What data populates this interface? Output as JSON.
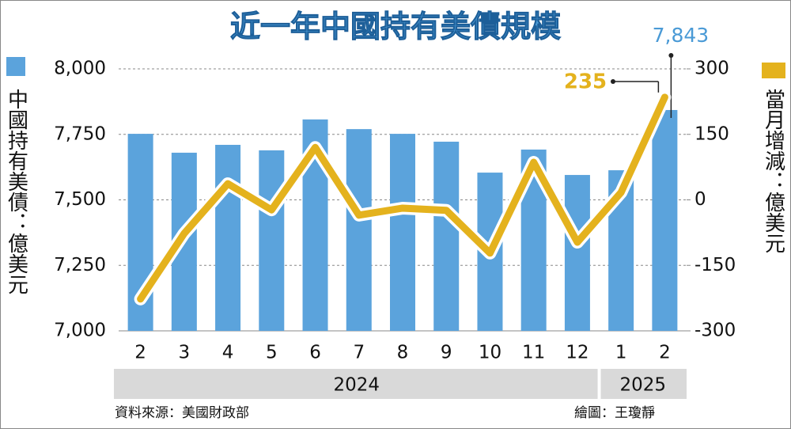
{
  "chart_data": {
    "type": "bar-line",
    "title": "近一年中國持有美債規模",
    "categories": [
      "2",
      "3",
      "4",
      "5",
      "6",
      "7",
      "8",
      "9",
      "10",
      "11",
      "12",
      "1",
      "2"
    ],
    "years": [
      "2024",
      "2024",
      "2024",
      "2024",
      "2024",
      "2024",
      "2024",
      "2024",
      "2024",
      "2024",
      "2024",
      "2025",
      "2025"
    ],
    "series": [
      {
        "name": "中國持有美債：億美元",
        "type": "bar",
        "color": "#5ba3dc",
        "axis": "y",
        "values": [
          7752,
          7680,
          7710,
          7689,
          7807,
          7770,
          7752,
          7722,
          7604,
          7692,
          7595,
          7613,
          7843
        ],
        "value_labels": [
          null,
          null,
          null,
          null,
          null,
          null,
          null,
          null,
          null,
          null,
          null,
          null,
          "7,843"
        ]
      },
      {
        "name": "當月增減：億美元",
        "type": "line",
        "color": "#e4b21d",
        "axis": "y2",
        "values": [
          -227,
          -77,
          37,
          -23,
          120,
          -35,
          -19,
          -24,
          -122,
          86,
          -97,
          17,
          235
        ]
      }
    ],
    "ylim": [
      7000,
      8000
    ],
    "yticks": [
      {
        "value": 7000,
        "label": "7,000"
      },
      {
        "value": 7250,
        "label": "7,250"
      },
      {
        "value": 7500,
        "label": "7,500"
      },
      {
        "value": 7750,
        "label": "7,750"
      },
      {
        "value": 8000,
        "label": "8,000"
      }
    ],
    "y2lim": [
      -300,
      300
    ],
    "y2ticks": [
      -300,
      -150,
      0,
      150,
      300
    ],
    "grid": true,
    "source": "資料來源：美國財政部",
    "credit": "繪圖：王瓊靜"
  }
}
